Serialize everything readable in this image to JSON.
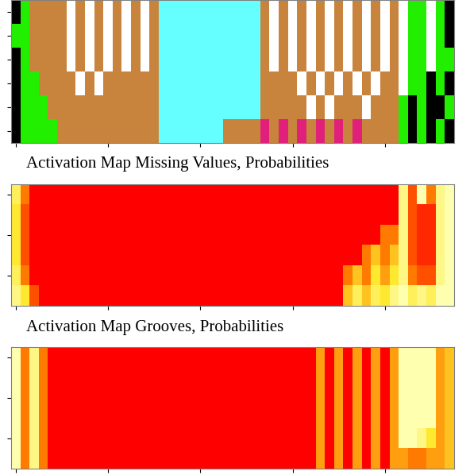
{
  "chart_data": [
    {
      "type": "segmentation",
      "colors": [
        "#22ee00",
        "#000000",
        "#c8843c",
        "#66ffff",
        "#e0207a",
        "#ffffff"
      ],
      "tick_labels": false,
      "cells": [
        [
          1,
          0,
          2,
          2,
          2,
          2,
          5,
          2,
          5,
          2,
          5,
          2,
          5,
          2,
          5,
          2,
          3,
          3,
          3,
          3,
          3,
          3,
          3,
          3,
          3,
          3,
          3,
          2,
          5,
          2,
          5,
          2,
          5,
          2,
          5,
          2,
          5,
          2,
          5,
          2,
          5,
          2,
          5,
          0,
          0,
          5,
          0,
          1
        ],
        [
          0,
          0,
          2,
          2,
          2,
          2,
          5,
          2,
          5,
          2,
          5,
          2,
          5,
          2,
          5,
          2,
          3,
          3,
          3,
          3,
          3,
          3,
          3,
          3,
          3,
          3,
          3,
          2,
          5,
          2,
          5,
          2,
          5,
          2,
          5,
          2,
          5,
          2,
          5,
          2,
          5,
          2,
          5,
          0,
          0,
          5,
          0,
          1
        ],
        [
          1,
          0,
          2,
          2,
          2,
          2,
          5,
          2,
          5,
          2,
          5,
          2,
          5,
          2,
          5,
          2,
          3,
          3,
          3,
          3,
          3,
          3,
          3,
          3,
          3,
          3,
          3,
          2,
          5,
          2,
          5,
          2,
          5,
          2,
          5,
          2,
          5,
          2,
          5,
          2,
          5,
          2,
          5,
          0,
          0,
          5,
          0,
          0
        ],
        [
          1,
          0,
          0,
          2,
          2,
          2,
          2,
          5,
          2,
          5,
          2,
          2,
          2,
          2,
          2,
          2,
          3,
          3,
          3,
          3,
          3,
          3,
          3,
          3,
          3,
          3,
          3,
          2,
          2,
          2,
          2,
          5,
          2,
          5,
          2,
          5,
          2,
          5,
          2,
          5,
          2,
          2,
          5,
          0,
          0,
          1,
          0,
          1
        ],
        [
          1,
          0,
          0,
          0,
          2,
          2,
          2,
          2,
          2,
          2,
          2,
          2,
          2,
          2,
          2,
          2,
          3,
          3,
          3,
          3,
          3,
          3,
          3,
          3,
          3,
          3,
          3,
          2,
          2,
          2,
          2,
          2,
          5,
          2,
          5,
          2,
          2,
          2,
          5,
          2,
          2,
          2,
          0,
          1,
          0,
          1,
          1,
          0
        ],
        [
          1,
          0,
          0,
          0,
          0,
          2,
          2,
          2,
          2,
          2,
          2,
          2,
          2,
          2,
          2,
          2,
          3,
          3,
          3,
          3,
          3,
          3,
          3,
          2,
          2,
          2,
          2,
          4,
          2,
          4,
          2,
          4,
          2,
          4,
          2,
          4,
          2,
          4,
          2,
          2,
          2,
          2,
          0,
          1,
          0,
          1,
          0,
          1
        ]
      ]
    },
    {
      "type": "heatmap",
      "title": "Activation Map Missing Values, Probabilities",
      "tick_labels": false,
      "cells": [
        [
          0.7,
          0.3,
          0,
          0,
          0,
          0,
          0,
          0,
          0,
          0,
          0,
          0,
          0,
          0,
          0,
          0,
          0,
          0,
          0,
          0,
          0,
          0,
          0,
          0,
          0,
          0,
          0,
          0,
          0,
          0,
          0,
          0,
          0,
          0,
          0,
          0,
          0,
          0,
          0,
          0,
          0,
          0,
          0.8,
          0.2,
          0.9,
          0.3,
          0.8,
          0.9
        ],
        [
          0.6,
          0.2,
          0,
          0,
          0,
          0,
          0,
          0,
          0,
          0,
          0,
          0,
          0,
          0,
          0,
          0,
          0,
          0,
          0,
          0,
          0,
          0,
          0,
          0,
          0,
          0,
          0,
          0,
          0,
          0,
          0,
          0,
          0,
          0,
          0,
          0,
          0,
          0,
          0,
          0,
          0,
          0,
          0.8,
          0.2,
          0.1,
          0.1,
          0.8,
          0.9
        ],
        [
          0.6,
          0.2,
          0,
          0,
          0,
          0,
          0,
          0,
          0,
          0,
          0,
          0,
          0,
          0,
          0,
          0,
          0,
          0,
          0,
          0,
          0,
          0,
          0,
          0,
          0,
          0,
          0,
          0,
          0,
          0,
          0,
          0,
          0,
          0,
          0,
          0,
          0,
          0,
          0,
          0,
          0.3,
          0.3,
          0.8,
          0.2,
          0.1,
          0.1,
          0.8,
          0.9
        ],
        [
          0.6,
          0.2,
          0,
          0,
          0,
          0,
          0,
          0,
          0,
          0,
          0,
          0,
          0,
          0,
          0,
          0,
          0,
          0,
          0,
          0,
          0,
          0,
          0,
          0,
          0,
          0,
          0,
          0,
          0,
          0,
          0,
          0,
          0,
          0,
          0,
          0,
          0,
          0,
          0.3,
          0.5,
          0.3,
          0.5,
          0.8,
          0.2,
          0.1,
          0.1,
          0.8,
          0.9
        ],
        [
          0.7,
          0.3,
          0,
          0,
          0,
          0,
          0,
          0,
          0,
          0,
          0,
          0,
          0,
          0,
          0,
          0,
          0,
          0,
          0,
          0,
          0,
          0,
          0,
          0,
          0,
          0,
          0,
          0,
          0,
          0,
          0,
          0,
          0,
          0,
          0,
          0,
          0.3,
          0.5,
          0.3,
          0.6,
          0.4,
          0.6,
          0.8,
          0.3,
          0.2,
          0.2,
          0.8,
          0.9
        ],
        [
          0.8,
          0.6,
          0.2,
          0,
          0,
          0,
          0,
          0,
          0,
          0,
          0,
          0,
          0,
          0,
          0,
          0,
          0,
          0,
          0,
          0,
          0,
          0,
          0,
          0,
          0,
          0,
          0,
          0,
          0,
          0,
          0,
          0,
          0,
          0,
          0,
          0,
          0.5,
          0.7,
          0.5,
          0.7,
          0.6,
          0.8,
          0.9,
          0.7,
          0.8,
          0.7,
          0.9,
          0.9
        ]
      ]
    },
    {
      "type": "heatmap",
      "title": "Activation Map Grooves, Probabilities",
      "tick_labels": false,
      "cells": [
        [
          0.9,
          0.3,
          0.8,
          0.3,
          0,
          0,
          0,
          0,
          0,
          0,
          0,
          0,
          0,
          0,
          0,
          0,
          0,
          0,
          0,
          0,
          0,
          0,
          0,
          0,
          0,
          0,
          0,
          0,
          0,
          0,
          0,
          0,
          0,
          0.4,
          0,
          0.4,
          0,
          0.4,
          0,
          0.4,
          0,
          0.4,
          0.9,
          0.9,
          0.9,
          0.9,
          0.4,
          0.5
        ],
        [
          0.9,
          0.3,
          0.8,
          0.3,
          0,
          0,
          0,
          0,
          0,
          0,
          0,
          0,
          0,
          0,
          0,
          0,
          0,
          0,
          0,
          0,
          0,
          0,
          0,
          0,
          0,
          0,
          0,
          0,
          0,
          0,
          0,
          0,
          0,
          0.4,
          0,
          0.4,
          0,
          0.4,
          0,
          0.4,
          0,
          0.4,
          0.9,
          0.9,
          0.9,
          0.9,
          0.4,
          0.5
        ],
        [
          0.9,
          0.3,
          0.8,
          0.3,
          0,
          0,
          0,
          0,
          0,
          0,
          0,
          0,
          0,
          0,
          0,
          0,
          0,
          0,
          0,
          0,
          0,
          0,
          0,
          0,
          0,
          0,
          0,
          0,
          0,
          0,
          0,
          0,
          0,
          0.4,
          0,
          0.4,
          0,
          0.4,
          0,
          0.4,
          0,
          0.4,
          0.9,
          0.9,
          0.9,
          0.9,
          0.4,
          0.5
        ],
        [
          0.9,
          0.3,
          0.8,
          0.3,
          0,
          0,
          0,
          0,
          0,
          0,
          0,
          0,
          0,
          0,
          0,
          0,
          0,
          0,
          0,
          0,
          0,
          0,
          0,
          0,
          0,
          0,
          0,
          0,
          0,
          0,
          0,
          0,
          0,
          0.4,
          0,
          0.4,
          0,
          0.4,
          0,
          0.4,
          0,
          0.4,
          0.9,
          0.9,
          0.9,
          0.9,
          0.4,
          0.5
        ],
        [
          0.9,
          0.3,
          0.8,
          0.3,
          0,
          0,
          0,
          0,
          0,
          0,
          0,
          0,
          0,
          0,
          0,
          0,
          0,
          0,
          0,
          0,
          0,
          0,
          0,
          0,
          0,
          0,
          0,
          0,
          0,
          0,
          0,
          0,
          0,
          0.4,
          0,
          0.4,
          0,
          0.4,
          0,
          0.4,
          0,
          0.4,
          0.9,
          0.9,
          0.8,
          0.6,
          0.4,
          0.5
        ],
        [
          0.9,
          0.3,
          0.8,
          0.3,
          0,
          0,
          0,
          0,
          0,
          0,
          0,
          0,
          0,
          0,
          0,
          0,
          0,
          0,
          0,
          0,
          0,
          0,
          0,
          0,
          0,
          0,
          0,
          0,
          0,
          0,
          0,
          0,
          0,
          0.4,
          0,
          0.4,
          0,
          0.4,
          0,
          0.4,
          0,
          0.4,
          0.4,
          0.3,
          0.3,
          0.4,
          0.4,
          0.5
        ]
      ]
    }
  ]
}
